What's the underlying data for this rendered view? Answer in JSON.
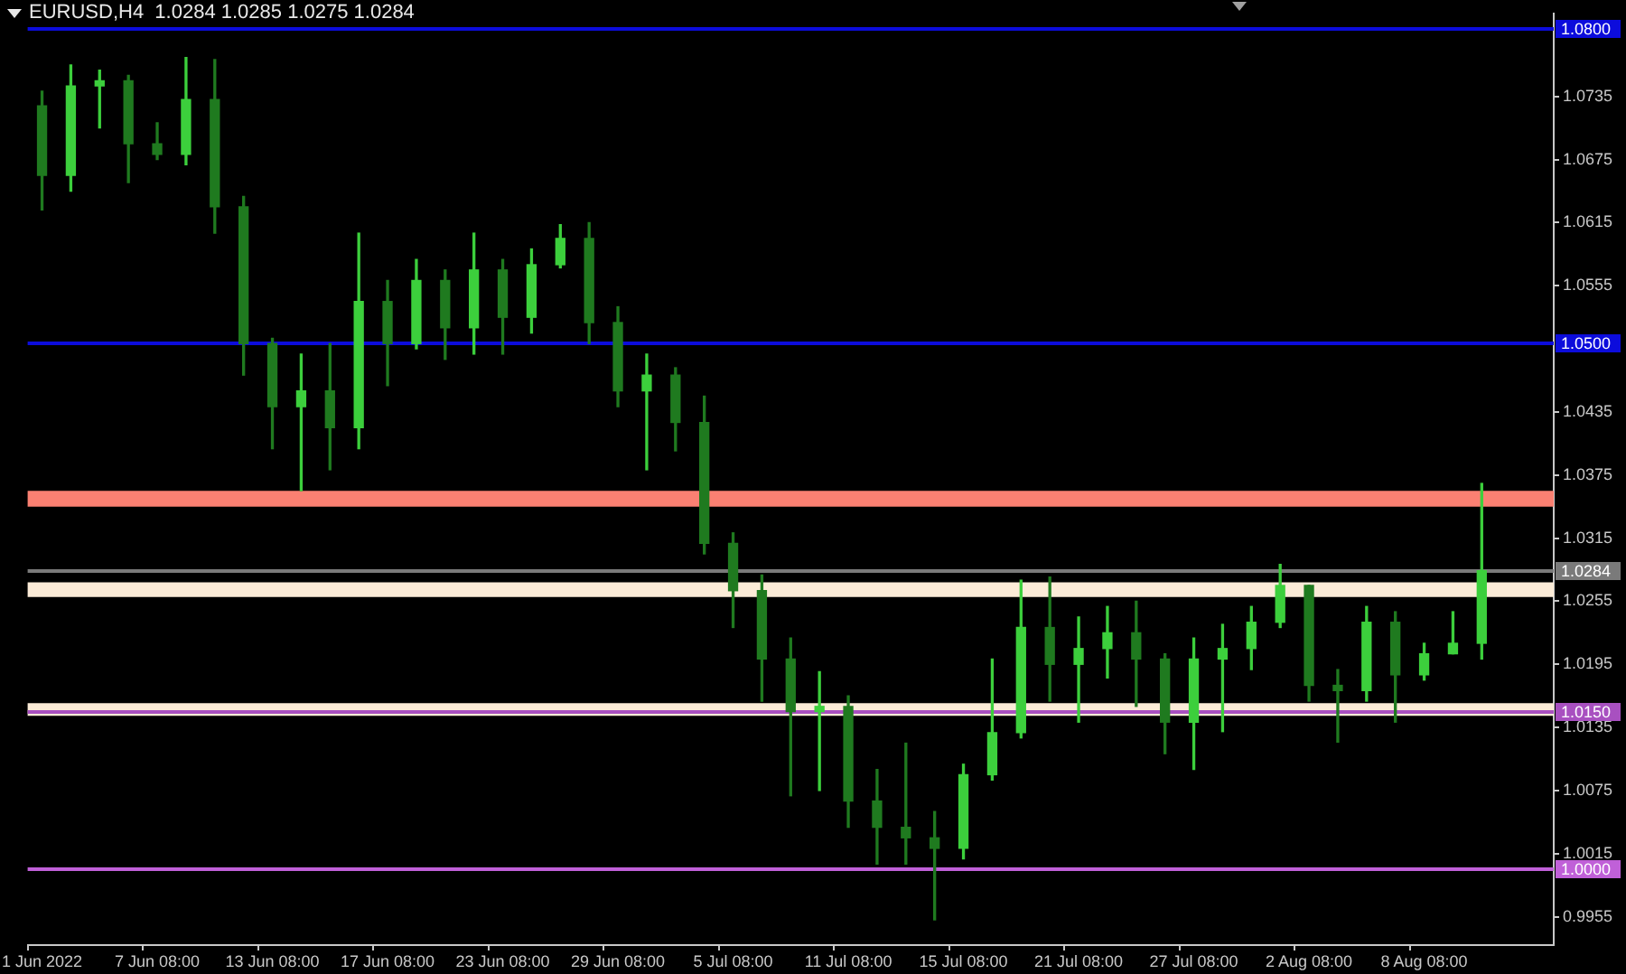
{
  "chart_data": {
    "type": "candlestick",
    "title": "EURUSD,H4  1.0284 1.0285 1.0275 1.0284",
    "categories": [
      "1 Jun 2022",
      null,
      null,
      null,
      "7 Jun 08:00",
      null,
      null,
      null,
      "13 Jun 08:00",
      null,
      null,
      null,
      "17 Jun 08:00",
      null,
      null,
      null,
      "23 Jun 08:00",
      null,
      null,
      null,
      "29 Jun 08:00",
      null,
      null,
      null,
      "5 Jul 08:00",
      null,
      null,
      null,
      "11 Jul 08:00",
      null,
      null,
      null,
      "15 Jul 08:00",
      null,
      null,
      null,
      "21 Jul 08:00",
      null,
      null,
      null,
      "27 Jul 08:00",
      null,
      null,
      null,
      "2 Aug 08:00",
      null,
      null,
      null,
      "8 Aug 08:00",
      null,
      null,
      null,
      null
    ],
    "colors": [
      "#1f7a1f",
      "#3ccf3c",
      "#3ccf3c",
      "#1f7a1f",
      "#1f7a1f",
      "#3ccf3c",
      "#1f7a1f",
      "#1f7a1f",
      "#1f7a1f",
      "#3ccf3c",
      "#1f7a1f",
      "#3ccf3c",
      "#1f7a1f",
      "#3ccf3c",
      "#1f7a1f",
      "#3ccf3c",
      "#1f7a1f",
      "#3ccf3c",
      "#3ccf3c",
      "#1f7a1f",
      "#1f7a1f",
      "#3ccf3c",
      "#1f7a1f",
      "#1f7a1f",
      "#1f7a1f",
      "#1f7a1f",
      "#1f7a1f",
      "#3ccf3c",
      "#1f7a1f",
      "#1f7a1f",
      "#1f7a1f",
      "#1f7a1f",
      "#3ccf3c",
      "#3ccf3c",
      "#3ccf3c",
      "#1f7a1f",
      "#3ccf3c",
      "#3ccf3c",
      "#1f7a1f",
      "#1f7a1f",
      "#3ccf3c",
      "#3ccf3c",
      "#3ccf3c",
      "#3ccf3c",
      "#1f7a1f",
      "#1f7a1f",
      "#3ccf3c",
      "#1f7a1f",
      "#3ccf3c",
      "#3ccf3c",
      "#3ccf3c",
      null,
      null
    ],
    "ohlc": [
      [
        1.0726,
        1.074,
        1.0627,
        1.066
      ],
      [
        1.066,
        1.0765,
        1.0645,
        1.0745
      ],
      [
        1.0745,
        1.076,
        1.0705,
        1.075
      ],
      [
        1.075,
        1.0755,
        1.0653,
        1.069
      ],
      [
        1.069,
        1.071,
        1.0675,
        1.068
      ],
      [
        1.068,
        1.0772,
        1.067,
        1.0732
      ],
      [
        1.0732,
        1.077,
        1.0605,
        1.063
      ],
      [
        1.063,
        1.064,
        1.047,
        1.05
      ],
      [
        1.05,
        1.0505,
        1.04,
        1.044
      ],
      [
        1.044,
        1.049,
        1.036,
        1.0455
      ],
      [
        1.0455,
        1.05,
        1.038,
        1.042
      ],
      [
        1.042,
        1.0605,
        1.04,
        1.054
      ],
      [
        1.054,
        1.056,
        1.046,
        1.05
      ],
      [
        1.05,
        1.058,
        1.0495,
        1.056
      ],
      [
        1.056,
        1.057,
        1.0485,
        1.0515
      ],
      [
        1.0515,
        1.0605,
        1.049,
        1.057
      ],
      [
        1.057,
        1.058,
        1.049,
        1.0525
      ],
      [
        1.0525,
        1.059,
        1.051,
        1.0575
      ],
      [
        1.0575,
        1.0613,
        1.0572,
        1.06
      ],
      [
        1.06,
        1.0615,
        1.05,
        1.052
      ],
      [
        1.052,
        1.0535,
        1.044,
        1.0455
      ],
      [
        1.0455,
        1.049,
        1.038,
        1.047
      ],
      [
        1.047,
        1.0477,
        1.0398,
        1.0425
      ],
      [
        1.0425,
        1.045,
        1.03,
        1.031
      ],
      [
        1.031,
        1.032,
        1.023,
        1.0265
      ],
      [
        1.0265,
        1.028,
        1.016,
        1.02
      ],
      [
        1.02,
        1.022,
        1.007,
        1.015
      ],
      [
        1.015,
        1.0188,
        1.0075,
        1.0155
      ],
      [
        1.0155,
        1.0165,
        1.004,
        1.0065
      ],
      [
        1.0065,
        1.0095,
        1.0005,
        1.004
      ],
      [
        1.004,
        1.012,
        1.0005,
        1.003
      ],
      [
        1.003,
        1.0055,
        0.9952,
        1.002
      ],
      [
        1.002,
        1.01,
        1.001,
        1.009
      ],
      [
        1.009,
        1.02,
        1.0085,
        1.013
      ],
      [
        1.013,
        1.0275,
        1.0125,
        1.023
      ],
      [
        1.023,
        1.0278,
        1.016,
        1.0195
      ],
      [
        1.0195,
        1.024,
        1.014,
        1.021
      ],
      [
        1.021,
        1.025,
        1.0182,
        1.0225
      ],
      [
        1.0225,
        1.0255,
        1.0155,
        1.02
      ],
      [
        1.02,
        1.0205,
        1.011,
        1.014
      ],
      [
        1.014,
        1.022,
        1.0095,
        1.02
      ],
      [
        1.02,
        1.0233,
        1.0131,
        1.021
      ],
      [
        1.021,
        1.025,
        1.019,
        1.0235
      ],
      [
        1.0235,
        1.029,
        1.023,
        1.027
      ],
      [
        1.027,
        1.027,
        1.016,
        1.0175
      ],
      [
        1.0175,
        1.019,
        1.0121,
        1.017
      ],
      [
        1.017,
        1.025,
        1.016,
        1.0235
      ],
      [
        1.0235,
        1.0245,
        1.014,
        1.0185
      ],
      [
        1.0185,
        1.0215,
        1.018,
        1.0205
      ],
      [
        1.0205,
        1.0245,
        1.0205,
        1.0215
      ],
      [
        1.0215,
        1.0367,
        1.02,
        1.0284
      ],
      null,
      null
    ],
    "ylim": [
      0.9928,
      1.0814
    ],
    "yticks": [
      0.9955,
      1.0015,
      1.0075,
      1.0135,
      1.0195,
      1.0255,
      1.0315,
      1.0375,
      1.0435,
      1.0555,
      1.0615,
      1.0675,
      1.0735
    ],
    "ref_lines": [
      {
        "axis": "y",
        "value": 1.08,
        "label": "1.0800",
        "color": "#0c0cdc"
      },
      {
        "axis": "y",
        "value": 1.05,
        "label": "1.0500",
        "color": "#0c0cdc"
      },
      {
        "axis": "y",
        "value": 1.0284,
        "label": "1.0284",
        "color": "#7a7a7a"
      },
      {
        "axis": "y",
        "value": 1.015,
        "label": "1.0150",
        "color": "#a850c0"
      },
      {
        "axis": "y",
        "value": 1.0,
        "label": "1.0000",
        "color": "#c060d8"
      }
    ],
    "bands": [
      {
        "axis": "y",
        "from": 1.0345,
        "to": 1.036,
        "color": "#fa8072"
      },
      {
        "axis": "y",
        "from": 1.0259,
        "to": 1.0273,
        "color": "#fbebd7"
      },
      {
        "axis": "y",
        "from": 1.0146,
        "to": 1.0158,
        "color": "#fbebd7"
      }
    ],
    "grid": false,
    "legend": false
  }
}
